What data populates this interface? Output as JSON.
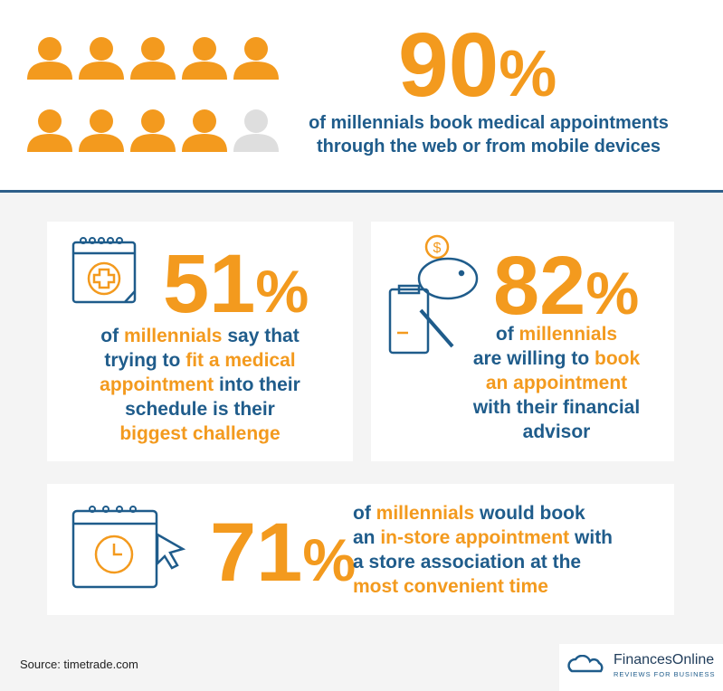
{
  "header": {
    "stat": {
      "number": "90",
      "unit": "%"
    },
    "lines": [
      [
        {
          "text": "of millennials book medical appointments"
        }
      ],
      [
        {
          "text": "through the web or from mobile devices"
        }
      ]
    ]
  },
  "cards": [
    {
      "stat": {
        "number": "51",
        "unit": "%"
      },
      "lines": [
        [
          {
            "text": "of "
          },
          {
            "text": "millennials",
            "accent": true
          },
          {
            "text": " say that"
          }
        ],
        [
          {
            "text": "trying to "
          },
          {
            "text": "fit a medical",
            "accent": true
          }
        ],
        [
          {
            "text": "appointment",
            "accent": true
          },
          {
            "text": " into their"
          }
        ],
        [
          {
            "text": "schedule is their"
          }
        ],
        [
          {
            "text": "biggest challenge",
            "accent": true
          }
        ]
      ]
    },
    {
      "stat": {
        "number": "82",
        "unit": "%"
      },
      "lines": [
        [
          {
            "text": "of "
          },
          {
            "text": "millennials",
            "accent": true
          }
        ],
        [
          {
            "text": "are willing to "
          },
          {
            "text": "book",
            "accent": true
          }
        ],
        [
          {
            "text": "an appointment",
            "accent": true
          }
        ],
        [
          {
            "text": "with their financial"
          }
        ],
        [
          {
            "text": "advisor"
          }
        ]
      ]
    },
    {
      "stat": {
        "number": "71",
        "unit": "%"
      },
      "lines": [
        [
          {
            "text": "of "
          },
          {
            "text": "millennials",
            "accent": true
          },
          {
            "text": " would book"
          }
        ],
        [
          {
            "text": "an "
          },
          {
            "text": "in-store appointment",
            "accent": true
          },
          {
            "text": " with"
          }
        ],
        [
          {
            "text": "a store association at the"
          }
        ],
        [
          {
            "text": "most convenient time",
            "accent": true
          }
        ]
      ]
    }
  ],
  "footer": {
    "source": "Source: timetrade.com",
    "logo": {
      "name": "FinancesOnline",
      "tagline": "REVIEWS FOR BUSINESS"
    }
  }
}
